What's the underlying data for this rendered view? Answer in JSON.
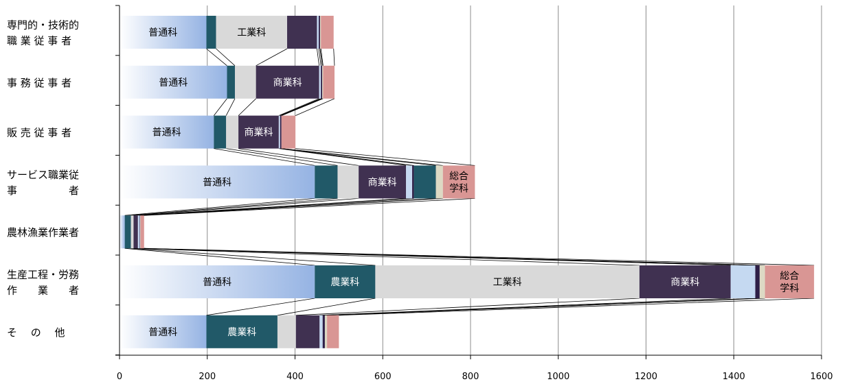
{
  "chart_data": {
    "type": "bar",
    "orientation": "horizontal",
    "stacked": true,
    "series_lines": true,
    "xlim": [
      0,
      1600
    ],
    "x_ticks": [
      0,
      200,
      400,
      600,
      800,
      1000,
      1200,
      1400,
      1600
    ],
    "grid": true,
    "categories": [
      {
        "label_lines": [
          "専門的・技術的",
          "職 業 従 事 者"
        ]
      },
      {
        "label_lines": [
          "事 務 従 事 者"
        ]
      },
      {
        "label_lines": [
          "販 売 従 事 者"
        ]
      },
      {
        "label_lines": [
          "サービス職業従",
          "事　　　　　者"
        ]
      },
      {
        "label_lines": [
          "農林漁業作業者"
        ]
      },
      {
        "label_lines": [
          "生産工程・労務",
          "作　　業　　者"
        ]
      },
      {
        "label_lines": [
          "そ 　の　 他"
        ]
      }
    ],
    "series": [
      {
        "color": "#a9c2ea",
        "gradient": true,
        "values": [
          198,
          245,
          215,
          445,
          12,
          445,
          198
        ]
      },
      {
        "color": "#215968",
        "values": [
          22,
          18,
          28,
          52,
          14,
          138,
          162
        ]
      },
      {
        "color": "#d9d9d9",
        "values": [
          162,
          48,
          28,
          48,
          6,
          602,
          42
        ]
      },
      {
        "color": "#403151",
        "values": [
          68,
          144,
          92,
          108,
          10,
          208,
          54
        ]
      },
      {
        "color": "#c5d9f1",
        "values": [
          4,
          4,
          3,
          14,
          4,
          56,
          7
        ]
      },
      {
        "color": "#2e1f47",
        "values": [
          3,
          3,
          3,
          4,
          1,
          10,
          5
        ]
      },
      {
        "color": "#215968",
        "values": [
          0,
          0,
          0,
          50,
          0,
          0,
          0
        ]
      },
      {
        "color": "#ddd9c4",
        "values": [
          2,
          2,
          0,
          16,
          1,
          12,
          5
        ]
      },
      {
        "color": "#d99694",
        "values": [
          29,
          26,
          32,
          73,
          8,
          112,
          27
        ]
      }
    ],
    "segment_labels": [
      {
        "bar": 0,
        "series": 0,
        "text": "普通科",
        "color": "#000000"
      },
      {
        "bar": 0,
        "series": 2,
        "text": "工業科",
        "color": "#000000"
      },
      {
        "bar": 1,
        "series": 0,
        "text": "普通科",
        "color": "#000000"
      },
      {
        "bar": 1,
        "series": 3,
        "text": "商業科",
        "color": "#ffffff"
      },
      {
        "bar": 2,
        "series": 0,
        "text": "普通科",
        "color": "#000000"
      },
      {
        "bar": 2,
        "series": 3,
        "text": "商業科",
        "color": "#ffffff"
      },
      {
        "bar": 3,
        "series": 0,
        "text": "普通科",
        "color": "#000000"
      },
      {
        "bar": 3,
        "series": 3,
        "text": "商業科",
        "color": "#ffffff"
      },
      {
        "bar": 3,
        "series": 8,
        "text": "総合\n学科",
        "color": "#000000"
      },
      {
        "bar": 5,
        "series": 0,
        "text": "普通科",
        "color": "#000000"
      },
      {
        "bar": 5,
        "series": 1,
        "text": "農業科",
        "color": "#ffffff"
      },
      {
        "bar": 5,
        "series": 2,
        "text": "工業科",
        "color": "#000000"
      },
      {
        "bar": 5,
        "series": 3,
        "text": "商業科",
        "color": "#ffffff"
      },
      {
        "bar": 5,
        "series": 8,
        "text": "総合\n学科",
        "color": "#000000"
      },
      {
        "bar": 6,
        "series": 0,
        "text": "普通科",
        "color": "#000000"
      },
      {
        "bar": 6,
        "series": 1,
        "text": "農業科",
        "color": "#ffffff"
      }
    ]
  }
}
